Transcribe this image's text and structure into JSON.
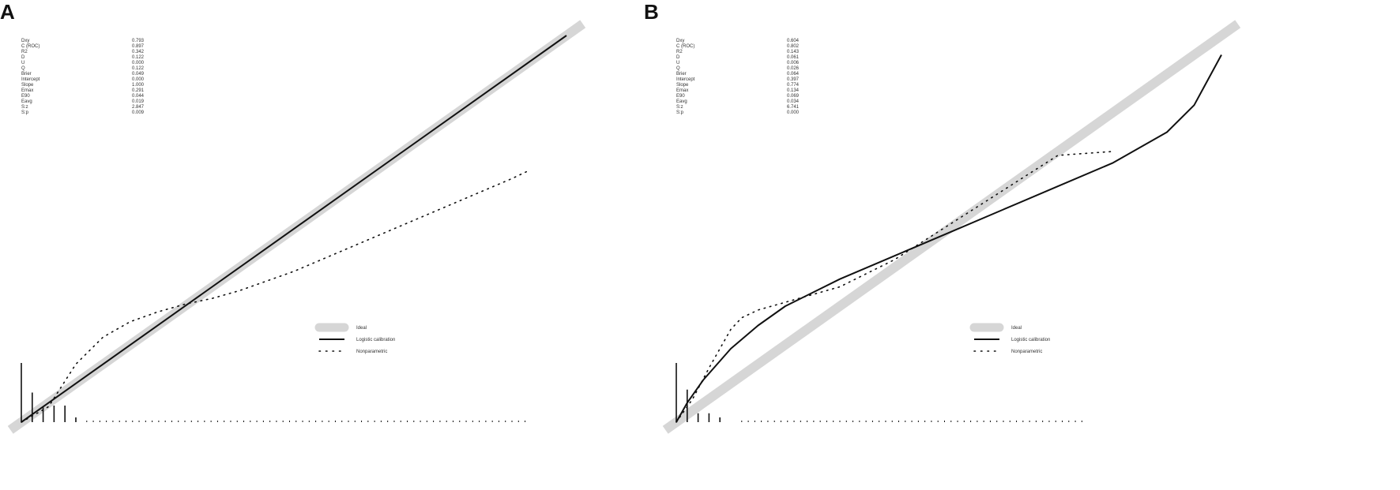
{
  "chart_data": [
    {
      "panel_label": "A",
      "type": "line",
      "xlim": [
        0,
        1
      ],
      "ylim": [
        0,
        1
      ],
      "grid": false,
      "legend_placement": "bottom-right",
      "legend": [
        "Ideal",
        "Logistic calibration",
        "Nonparametric"
      ],
      "stats": [
        {
          "name": "Dxy",
          "value": "0.793"
        },
        {
          "name": "C (ROC)",
          "value": "0.897"
        },
        {
          "name": "R2",
          "value": "0.342"
        },
        {
          "name": "D",
          "value": "0.122"
        },
        {
          "name": "U",
          "value": "0.000"
        },
        {
          "name": "Q",
          "value": "0.122"
        },
        {
          "name": "Brier",
          "value": "0.049"
        },
        {
          "name": "Intercept",
          "value": "0.000"
        },
        {
          "name": "Slope",
          "value": "1.000"
        },
        {
          "name": "Emax",
          "value": "0.291"
        },
        {
          "name": "E90",
          "value": "0.044"
        },
        {
          "name": "Eavg",
          "value": "0.019"
        },
        {
          "name": "S:z",
          "value": "2.847"
        },
        {
          "name": "S:p",
          "value": "0.009"
        }
      ],
      "series": [
        {
          "name": "Ideal",
          "x": [
            0,
            1
          ],
          "y": [
            0,
            1
          ]
        },
        {
          "name": "Logistic calibration",
          "x": [
            0,
            1
          ],
          "y": [
            0,
            1
          ]
        },
        {
          "name": "Nonparametric",
          "x": [
            0.0,
            0.05,
            0.1,
            0.15,
            0.2,
            0.25,
            0.3,
            0.35,
            0.4,
            0.5,
            0.6,
            0.7,
            0.8,
            0.9,
            0.93
          ],
          "y": [
            0.0,
            0.04,
            0.15,
            0.22,
            0.26,
            0.285,
            0.305,
            0.32,
            0.34,
            0.39,
            0.45,
            0.51,
            0.57,
            0.63,
            0.65
          ]
        }
      ],
      "histogram": {
        "x": [
          0.0,
          0.02,
          0.04,
          0.06,
          0.08,
          0.1
        ],
        "counts": [
          1.0,
          0.5,
          0.25,
          0.28,
          0.28,
          0.08
        ]
      }
    },
    {
      "panel_label": "B",
      "type": "line",
      "xlim": [
        0,
        1
      ],
      "ylim": [
        0,
        1
      ],
      "grid": false,
      "legend_placement": "bottom-right",
      "legend": [
        "Ideal",
        "Logistic calibration",
        "Nonparametric"
      ],
      "stats": [
        {
          "name": "Dxy",
          "value": "0.604"
        },
        {
          "name": "C (ROC)",
          "value": "0.802"
        },
        {
          "name": "R2",
          "value": "0.143"
        },
        {
          "name": "D",
          "value": "0.061"
        },
        {
          "name": "U",
          "value": "0.006"
        },
        {
          "name": "Q",
          "value": "0.026"
        },
        {
          "name": "Brier",
          "value": "0.064"
        },
        {
          "name": "Intercept",
          "value": "0.397"
        },
        {
          "name": "Slope",
          "value": "0.774"
        },
        {
          "name": "Emax",
          "value": "0.134"
        },
        {
          "name": "E90",
          "value": "0.069"
        },
        {
          "name": "Eavg",
          "value": "0.034"
        },
        {
          "name": "S:z",
          "value": "6.741"
        },
        {
          "name": "S:p",
          "value": "0.000"
        }
      ],
      "series": [
        {
          "name": "Ideal",
          "x": [
            0,
            1
          ],
          "y": [
            0,
            1
          ]
        },
        {
          "name": "Logistic calibration",
          "x": [
            0.0,
            0.02,
            0.05,
            0.1,
            0.15,
            0.2,
            0.3,
            0.4,
            0.5,
            0.6,
            0.7,
            0.8,
            0.9,
            0.95,
            1.0
          ],
          "y": [
            0.0,
            0.05,
            0.11,
            0.19,
            0.25,
            0.3,
            0.37,
            0.43,
            0.49,
            0.55,
            0.61,
            0.67,
            0.75,
            0.82,
            0.95
          ]
        },
        {
          "name": "Nonparametric",
          "x": [
            0.0,
            0.03,
            0.06,
            0.1,
            0.12,
            0.15,
            0.2,
            0.3,
            0.4,
            0.5,
            0.6,
            0.7,
            0.8
          ],
          "y": [
            0.0,
            0.06,
            0.14,
            0.24,
            0.27,
            0.29,
            0.31,
            0.35,
            0.42,
            0.51,
            0.6,
            0.69,
            0.7
          ]
        }
      ],
      "histogram": {
        "x": [
          0.0,
          0.02,
          0.04,
          0.06,
          0.08
        ],
        "counts": [
          1.0,
          0.55,
          0.15,
          0.15,
          0.08
        ]
      }
    }
  ]
}
